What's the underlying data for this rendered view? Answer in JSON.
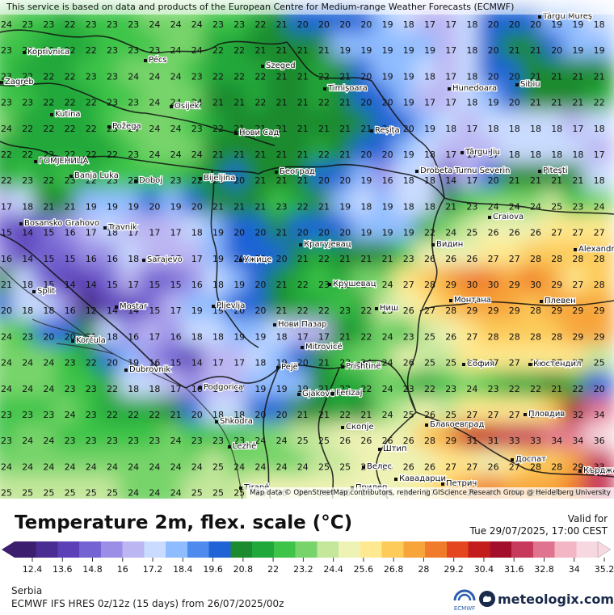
{
  "header": {
    "attribution": "This service is based on data and products of the European Centre for Medium-range Weather Forecasts (ECMWF)"
  },
  "map": {
    "attribution": "Map data © OpenStreetMap contributors, rendering GIScience Research Group @ Heidelberg University",
    "grid_rows": [
      [
        24,
        23,
        23,
        22,
        23,
        23,
        23,
        24,
        24,
        24,
        23,
        23,
        22,
        21,
        20,
        20,
        20,
        20,
        19,
        18,
        17,
        17,
        18,
        20,
        20,
        20,
        19,
        19,
        18
      ],
      [
        23,
        23,
        22,
        22,
        22,
        23,
        23,
        23,
        24,
        24,
        22,
        22,
        21,
        21,
        21,
        21,
        19,
        19,
        19,
        19,
        19,
        17,
        18,
        20,
        21,
        21,
        20,
        19,
        19
      ],
      [
        23,
        22,
        22,
        22,
        23,
        23,
        24,
        24,
        24,
        23,
        22,
        22,
        22,
        21,
        21,
        22,
        21,
        20,
        19,
        19,
        18,
        17,
        18,
        20,
        20,
        21,
        21,
        21,
        21
      ],
      [
        23,
        23,
        22,
        22,
        22,
        23,
        23,
        24,
        24,
        24,
        21,
        21,
        22,
        21,
        21,
        22,
        21,
        20,
        20,
        19,
        17,
        17,
        18,
        19,
        20,
        21,
        21,
        21,
        22
      ],
      [
        24,
        22,
        22,
        22,
        22,
        23,
        24,
        24,
        24,
        23,
        22,
        21,
        21,
        21,
        21,
        21,
        21,
        21,
        20,
        20,
        19,
        18,
        17,
        18,
        18,
        18,
        18,
        17,
        18
      ],
      [
        22,
        22,
        22,
        22,
        22,
        22,
        23,
        24,
        24,
        24,
        21,
        21,
        21,
        21,
        21,
        22,
        21,
        20,
        20,
        19,
        18,
        17,
        17,
        17,
        18,
        18,
        18,
        18,
        17
      ],
      [
        22,
        23,
        22,
        23,
        22,
        23,
        23,
        23,
        23,
        22,
        21,
        20,
        21,
        21,
        21,
        20,
        20,
        19,
        16,
        18,
        18,
        14,
        17,
        20,
        21,
        21,
        21,
        21,
        18
      ],
      [
        17,
        18,
        21,
        21,
        19,
        19,
        19,
        20,
        19,
        20,
        21,
        21,
        21,
        23,
        22,
        21,
        19,
        18,
        19,
        18,
        18,
        21,
        23,
        24,
        24,
        24,
        25,
        23,
        24
      ],
      [
        15,
        14,
        15,
        16,
        17,
        18,
        17,
        17,
        17,
        18,
        19,
        20,
        20,
        21,
        20,
        20,
        20,
        19,
        19,
        19,
        22,
        24,
        25,
        26,
        26,
        26,
        27,
        27,
        27
      ],
      [
        16,
        14,
        15,
        15,
        16,
        16,
        18,
        17,
        17,
        17,
        19,
        20,
        20,
        20,
        21,
        22,
        21,
        21,
        21,
        23,
        26,
        26,
        26,
        27,
        27,
        28,
        28,
        28,
        28
      ],
      [
        21,
        18,
        15,
        14,
        14,
        15,
        17,
        15,
        15,
        16,
        18,
        19,
        20,
        21,
        22,
        23,
        22,
        24,
        24,
        27,
        28,
        29,
        30,
        30,
        29,
        30,
        29,
        27,
        28
      ],
      [
        20,
        18,
        18,
        16,
        12,
        14,
        14,
        15,
        17,
        19,
        19,
        20,
        20,
        21,
        22,
        22,
        23,
        22,
        25,
        26,
        27,
        28,
        29,
        29,
        29,
        28,
        29,
        29,
        29
      ],
      [
        24,
        23,
        20,
        20,
        21,
        18,
        16,
        17,
        16,
        18,
        18,
        19,
        19,
        18,
        17,
        17,
        21,
        22,
        24,
        23,
        25,
        26,
        27,
        28,
        28,
        28,
        28,
        29,
        29
      ],
      [
        24,
        24,
        24,
        23,
        22,
        20,
        19,
        16,
        15,
        14,
        17,
        17,
        18,
        19,
        20,
        21,
        23,
        24,
        24,
        26,
        25,
        25,
        27,
        27,
        27,
        27,
        27,
        27,
        25
      ],
      [
        24,
        24,
        24,
        23,
        23,
        22,
        18,
        18,
        17,
        16,
        17,
        17,
        19,
        19,
        19,
        21,
        22,
        22,
        24,
        23,
        22,
        23,
        24,
        23,
        22,
        22,
        21,
        22,
        20
      ],
      [
        23,
        23,
        23,
        24,
        23,
        22,
        22,
        22,
        21,
        20,
        18,
        18,
        20,
        20,
        21,
        21,
        22,
        21,
        24,
        25,
        26,
        25,
        27,
        27,
        27,
        27,
        28,
        32,
        34
      ],
      [
        23,
        24,
        24,
        23,
        23,
        23,
        23,
        23,
        24,
        23,
        23,
        23,
        24,
        24,
        25,
        25,
        26,
        26,
        26,
        26,
        28,
        29,
        31,
        31,
        33,
        33,
        34,
        34,
        36
      ],
      [
        24,
        24,
        24,
        24,
        24,
        24,
        24,
        24,
        24,
        24,
        25,
        24,
        24,
        24,
        24,
        25,
        25,
        26,
        26,
        26,
        26,
        27,
        27,
        26,
        27,
        28,
        28,
        29,
        33
      ],
      [
        25,
        25,
        25,
        25,
        25,
        25,
        24,
        24,
        24,
        25,
        25,
        25,
        26,
        26,
        26,
        26,
        26,
        26,
        26,
        26,
        27,
        28,
        29,
        30,
        29,
        29,
        29,
        30,
        33
      ]
    ],
    "places": [
      {
        "name": "Koprivnica"
      },
      {
        "name": "Pécs"
      },
      {
        "name": "Szeged"
      },
      {
        "name": "Târgu Mureș"
      },
      {
        "name": "Zagreb"
      },
      {
        "name": "Timișoara"
      },
      {
        "name": "Hunedoara"
      },
      {
        "name": "Sibiu"
      },
      {
        "name": "Osijek"
      },
      {
        "name": "Kutina"
      },
      {
        "name": "Požega"
      },
      {
        "name": "Нови Сад"
      },
      {
        "name": "Reșița"
      },
      {
        "name": "Târgu Jiu"
      },
      {
        "name": "ГОМЈЕНИЦА"
      },
      {
        "name": "Banja Luka"
      },
      {
        "name": "Doboj"
      },
      {
        "name": "Bijeljina"
      },
      {
        "name": "Београд"
      },
      {
        "name": "Drobeta-Turnu Severin"
      },
      {
        "name": "Pitești"
      },
      {
        "name": "Bosansko Grahovo"
      },
      {
        "name": "Travnik"
      },
      {
        "name": "Крагујевац"
      },
      {
        "name": "Видин"
      },
      {
        "name": "Craiova"
      },
      {
        "name": "Sarajevo"
      },
      {
        "name": "Ужице"
      },
      {
        "name": "Alexandria"
      },
      {
        "name": "Split"
      },
      {
        "name": "Крушевац"
      },
      {
        "name": "Mostar"
      },
      {
        "name": "Pljevlja"
      },
      {
        "name": "Монтана"
      },
      {
        "name": "Плевен"
      },
      {
        "name": "Ниш"
      },
      {
        "name": "Нови Пазар"
      },
      {
        "name": "Korčula"
      },
      {
        "name": "Mitrovicë"
      },
      {
        "name": "Dubrovnik"
      },
      {
        "name": "Prishtinë"
      },
      {
        "name": "София"
      },
      {
        "name": "Кюстендил"
      },
      {
        "name": "Pejë"
      },
      {
        "name": "Podgorica"
      },
      {
        "name": "Gjakovë"
      },
      {
        "name": "Ferizaj"
      },
      {
        "name": "Пловдив"
      },
      {
        "name": "Shkodra"
      },
      {
        "name": "Скопје"
      },
      {
        "name": "Благоевград"
      },
      {
        "name": "Lezhë"
      },
      {
        "name": "Штип"
      },
      {
        "name": "Доспат"
      },
      {
        "name": "Велес"
      },
      {
        "name": "Кърджали"
      },
      {
        "name": "Tiranë"
      },
      {
        "name": "Прилеп"
      },
      {
        "name": "Кавадарци"
      },
      {
        "name": "Петрич"
      }
    ]
  },
  "legend": {
    "title": "Temperature 2m, flex. scale (°C)",
    "valid_label": "Valid for",
    "valid_date": "Tue 29/07/2025, 17:00 CEST",
    "ticks": [
      "12.4",
      "13.6",
      "14.8",
      "16",
      "17.2",
      "18.4",
      "19.6",
      "20.8",
      "22",
      "23.2",
      "24.4",
      "25.6",
      "26.8",
      "28",
      "29.2",
      "30.4",
      "31.6",
      "32.8",
      "34",
      "35.2"
    ],
    "colors": [
      "#3b1e6e",
      "#4a2d92",
      "#5b40b8",
      "#7463d2",
      "#9a8ee6",
      "#bcb6f2",
      "#c9dcff",
      "#8fbcff",
      "#4f8bef",
      "#1f63d6",
      "#1c8a2e",
      "#21a83a",
      "#3ec448",
      "#77d46a",
      "#c4e79b",
      "#eef2b4",
      "#ffe990",
      "#fccb5a",
      "#f7a53a",
      "#f07b2a",
      "#e4461f",
      "#c41c1c",
      "#a30f2a",
      "#c73a5c",
      "#e07490",
      "#f2b6c4",
      "#f8d8e0"
    ]
  },
  "footer": {
    "region": "Serbia",
    "model": "ECMWF IFS HRES 0z/12z (15 days) from 26/07/2025/00z",
    "ecmwf_label": "ECMWF",
    "brand": "meteologix.com"
  }
}
